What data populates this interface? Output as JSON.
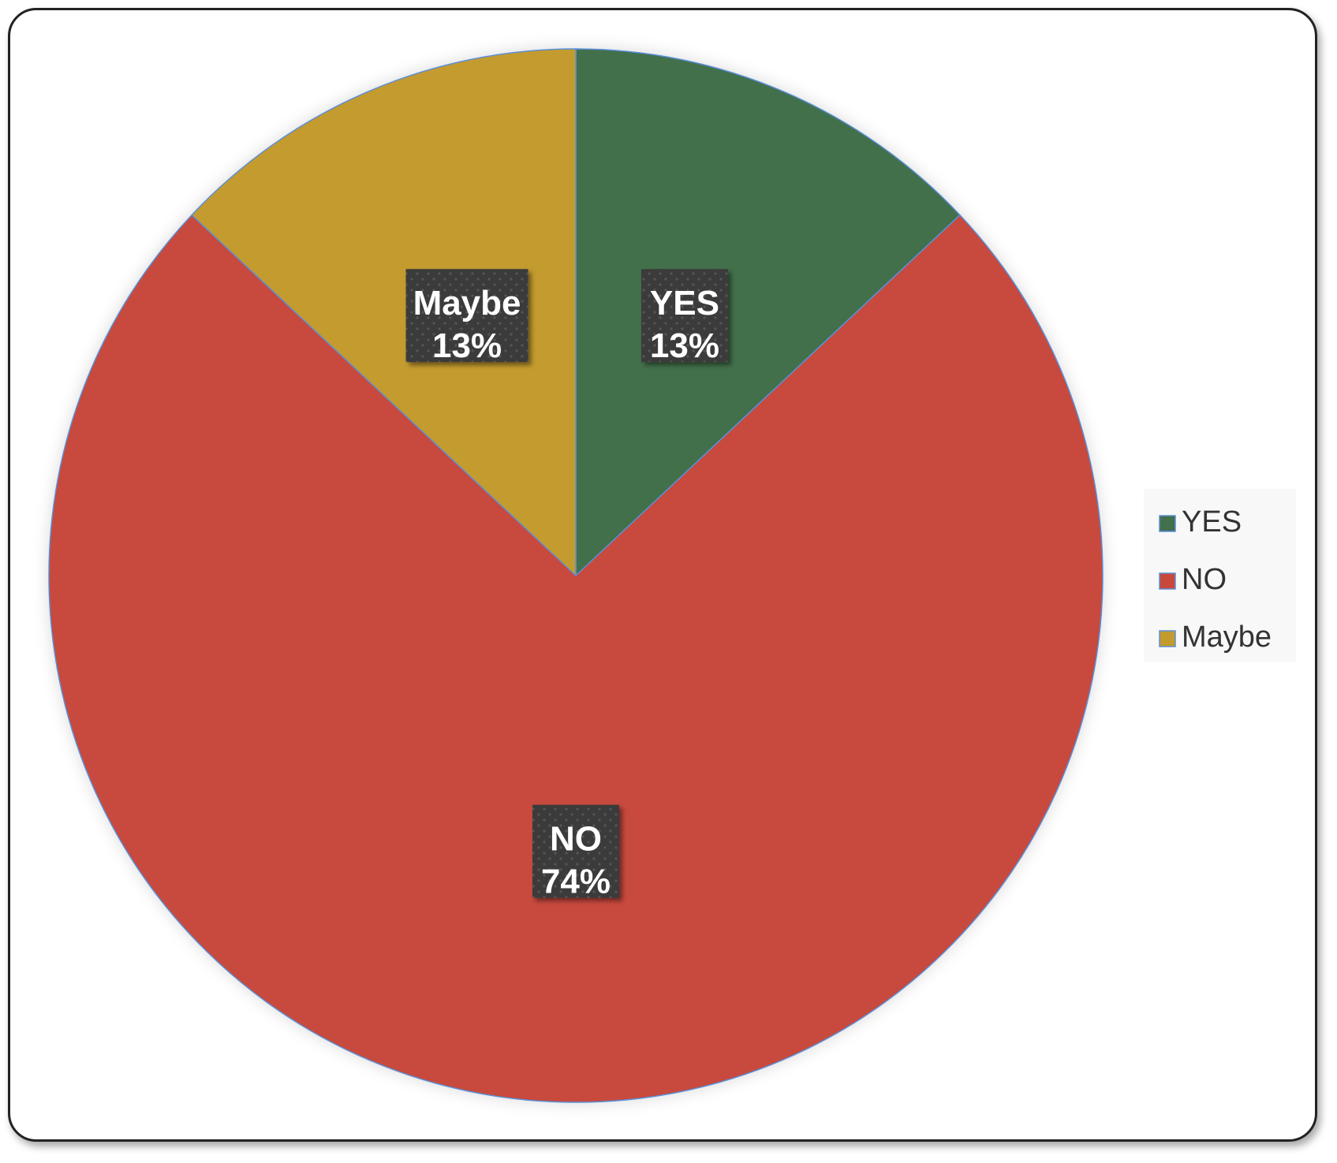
{
  "chart_data": {
    "type": "pie",
    "title": "",
    "categories": [
      "YES",
      "NO",
      "Maybe"
    ],
    "values": [
      13,
      74,
      13
    ],
    "value_labels": [
      "13%",
      "74%",
      "13%"
    ],
    "colors": [
      "#426f4c",
      "#c8483c",
      "#c49b2d"
    ],
    "start_angle_deg": 0,
    "direction": "clockwise",
    "legend": {
      "position": "right",
      "entries": [
        "YES",
        "NO",
        "Maybe"
      ]
    },
    "data_labels": {
      "show_category": true,
      "show_percent": true,
      "box_color": "#3b3b3b",
      "text_color": "#ffffff"
    },
    "slice_border_color": "#5b8fd6"
  }
}
